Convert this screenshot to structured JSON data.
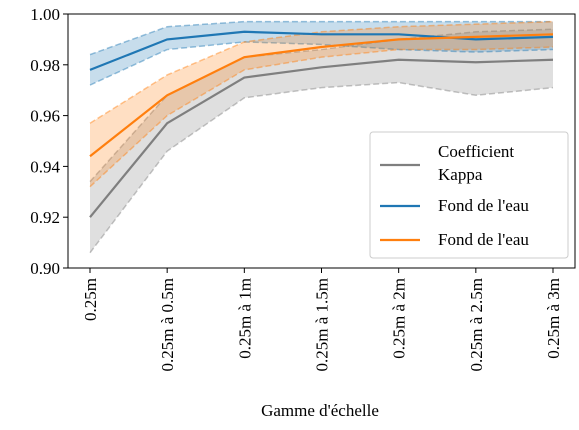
{
  "chart_data": {
    "type": "line",
    "x_label": "Gamme d'échelle",
    "categories": [
      "0.25m",
      "0.25m à 0.5m",
      "0.25m à 1m",
      "0.25m à 1.5m",
      "0.25m à 2m",
      "0.25m à 2.5m",
      "0.25m à 3m"
    ],
    "ylim": [
      0.9,
      1.0
    ],
    "yticks": [
      {
        "value": 0.9,
        "label": "0.90"
      },
      0.92,
      0.94,
      0.96,
      0.98,
      {
        "value": 1.0,
        "label": "1.00"
      }
    ],
    "legend": "lower right",
    "series": [
      {
        "name": "Coefficient Kappa",
        "color": "#7f7f7f",
        "values": [
          0.92,
          0.957,
          0.975,
          0.979,
          0.982,
          0.981,
          0.982
        ],
        "lower": [
          0.906,
          0.946,
          0.967,
          0.971,
          0.973,
          0.968,
          0.971
        ],
        "upper": [
          0.934,
          0.968,
          0.983,
          0.986,
          0.99,
          0.993,
          0.994
        ]
      },
      {
        "name": "Fond de l'eau",
        "color": "#1f77b4",
        "values": [
          0.978,
          0.99,
          0.993,
          0.992,
          0.992,
          0.99,
          0.991
        ],
        "lower": [
          0.972,
          0.986,
          0.989,
          0.988,
          0.986,
          0.985,
          0.986
        ],
        "upper": [
          0.984,
          0.995,
          0.997,
          0.997,
          0.997,
          0.997,
          0.997
        ]
      },
      {
        "name": "Fond de l'eau",
        "color": "#ff7f0e",
        "values": [
          0.944,
          0.968,
          0.983,
          0.987,
          0.99,
          0.991,
          0.992
        ],
        "lower": [
          0.932,
          0.96,
          0.978,
          0.983,
          0.986,
          0.986,
          0.987
        ],
        "upper": [
          0.957,
          0.976,
          0.989,
          0.993,
          0.995,
          0.996,
          0.997
        ]
      }
    ]
  }
}
